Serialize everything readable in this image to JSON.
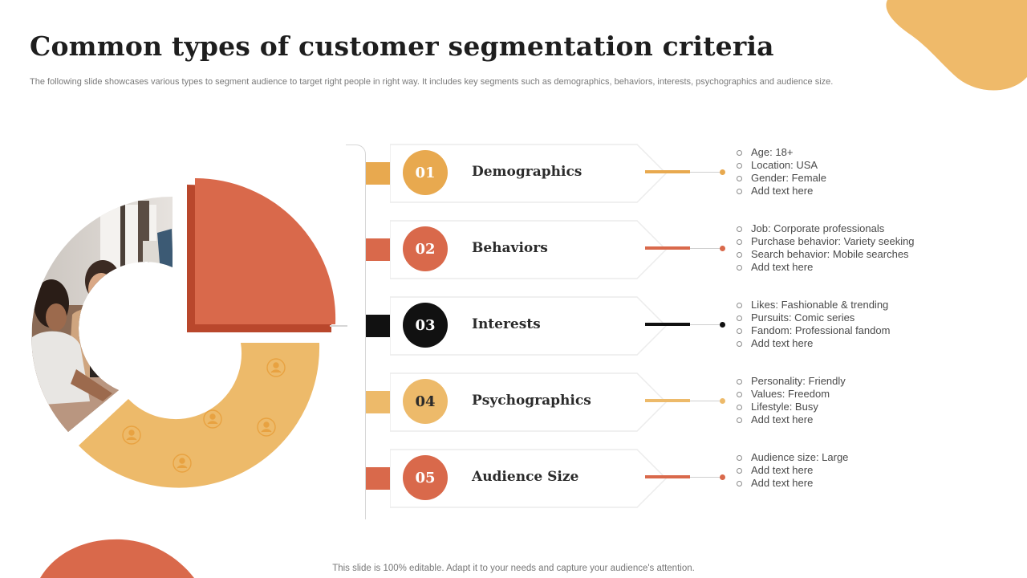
{
  "title": "Common types of customer segmentation criteria",
  "subtitle": "The following slide showcases various types to segment audience to target right people in right way. It includes key segments such as demographics, behaviors, interests, psychographics and audience size.",
  "footer": "This slide is 100% editable. Adapt it to your needs and capture your audience's attention.",
  "colors": {
    "orange": "#E8A94F",
    "red": "#D9694B",
    "black": "#111111",
    "light_orange": "#EDBA6A",
    "blob": "#EFBA6A"
  },
  "segments": [
    {
      "number": "01",
      "label": "Demographics",
      "color": "#E8A94F",
      "bullets": [
        "Age: 18+",
        "Location: USA",
        "Gender: Female",
        "Add text here"
      ]
    },
    {
      "number": "02",
      "label": "Behaviors",
      "color": "#D9694B",
      "bullets": [
        "Job: Corporate professionals",
        "Purchase behavior: Variety seeking",
        "Search behavior: Mobile searches",
        "Add text here"
      ]
    },
    {
      "number": "03",
      "label": "Interests",
      "color": "#111111",
      "bullets": [
        "Likes: Fashionable & trending",
        "Pursuits: Comic series",
        "Fandom: Professional fandom",
        "Add text here"
      ]
    },
    {
      "number": "04",
      "label": "Psychographics",
      "color": "#EDBA6A",
      "bullets": [
        "Personality: Friendly",
        "Values: Freedom",
        "Lifestyle: Busy",
        "Add text here"
      ]
    },
    {
      "number": "05",
      "label": "Audience Size",
      "color": "#D9694B",
      "bullets": [
        "Audience size: Large",
        "Add text here",
        "Add text here"
      ]
    }
  ]
}
